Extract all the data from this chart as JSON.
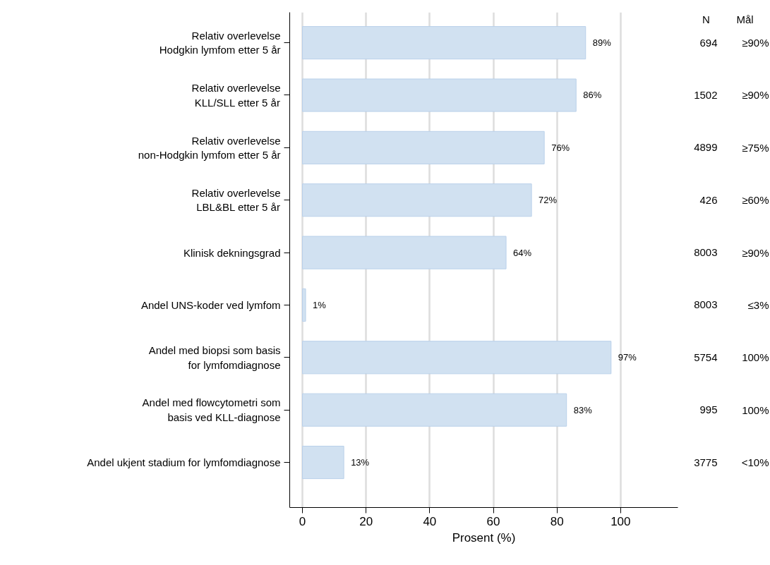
{
  "chart_data": {
    "type": "bar",
    "orientation": "horizontal",
    "categories": [
      "Relativ overlevelse\nHodgkin lymfom etter 5 år",
      "Relativ overlevelse\nKLL/SLL etter 5 år",
      "Relativ overlevelse\nnon-Hodgkin lymfom etter 5 år",
      "Relativ overlevelse\nLBL&BL etter 5 år",
      "Klinisk dekningsgrad",
      "Andel UNS-koder ved lymfom",
      "Andel med biopsi som basis\nfor lymfomdiagnose",
      "Andel med flowcytometri som\nbasis ved KLL-diagnose",
      "Andel ukjent stadium for lymfomdiagnose"
    ],
    "values": [
      89,
      86,
      76,
      72,
      64,
      1,
      97,
      83,
      13
    ],
    "value_labels": [
      "89%",
      "86%",
      "76%",
      "72%",
      "64%",
      "1%",
      "97%",
      "83%",
      "13%"
    ],
    "color": "#d1e1f1",
    "xlabel": "Prosent (%)",
    "xlim": [
      -4,
      118
    ],
    "xticks": [
      0,
      20,
      40,
      60,
      80,
      100
    ],
    "grid": "x",
    "annotations": [
      "N",
      "Mål",
      "694",
      "≥90%",
      "1502",
      "≥90%",
      "4899",
      "≥75%",
      "426",
      "≥60%",
      "8003",
      "≥90%",
      "8003",
      "≤3%",
      "5754",
      "100%",
      "995",
      "100%",
      "3775",
      "<10%"
    ]
  }
}
